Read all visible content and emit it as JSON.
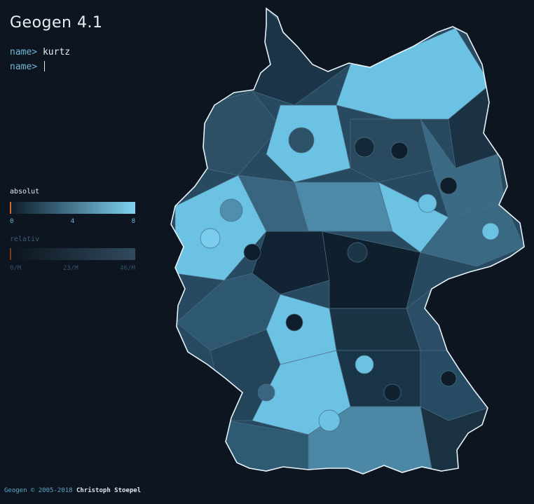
{
  "app": {
    "title": "Geogen 4.1"
  },
  "console": {
    "lines": [
      {
        "prompt": "name>",
        "value": "kurtz"
      },
      {
        "prompt": "name>",
        "value": ""
      }
    ]
  },
  "legend": {
    "absolute": {
      "label": "absolut",
      "ticks": [
        "0",
        "4",
        "8"
      ],
      "gradient_from": "#0d1b28",
      "gradient_to": "#7ed2f2"
    },
    "relative": {
      "label": "relativ",
      "ticks": [
        "0/M",
        "23/M",
        "46/M"
      ],
      "gradient_from": "#0b141d",
      "gradient_to": "#314a5d"
    },
    "marker_color": "#d96a2b"
  },
  "footer": {
    "copyright": "Geogen © 2005-2018",
    "author": "Christoph Stoepel"
  },
  "colors": {
    "background": "#0c1520",
    "region_light": "#6cc2e3",
    "region_dark": "#0c1a26",
    "border": "#e8f4fb"
  }
}
